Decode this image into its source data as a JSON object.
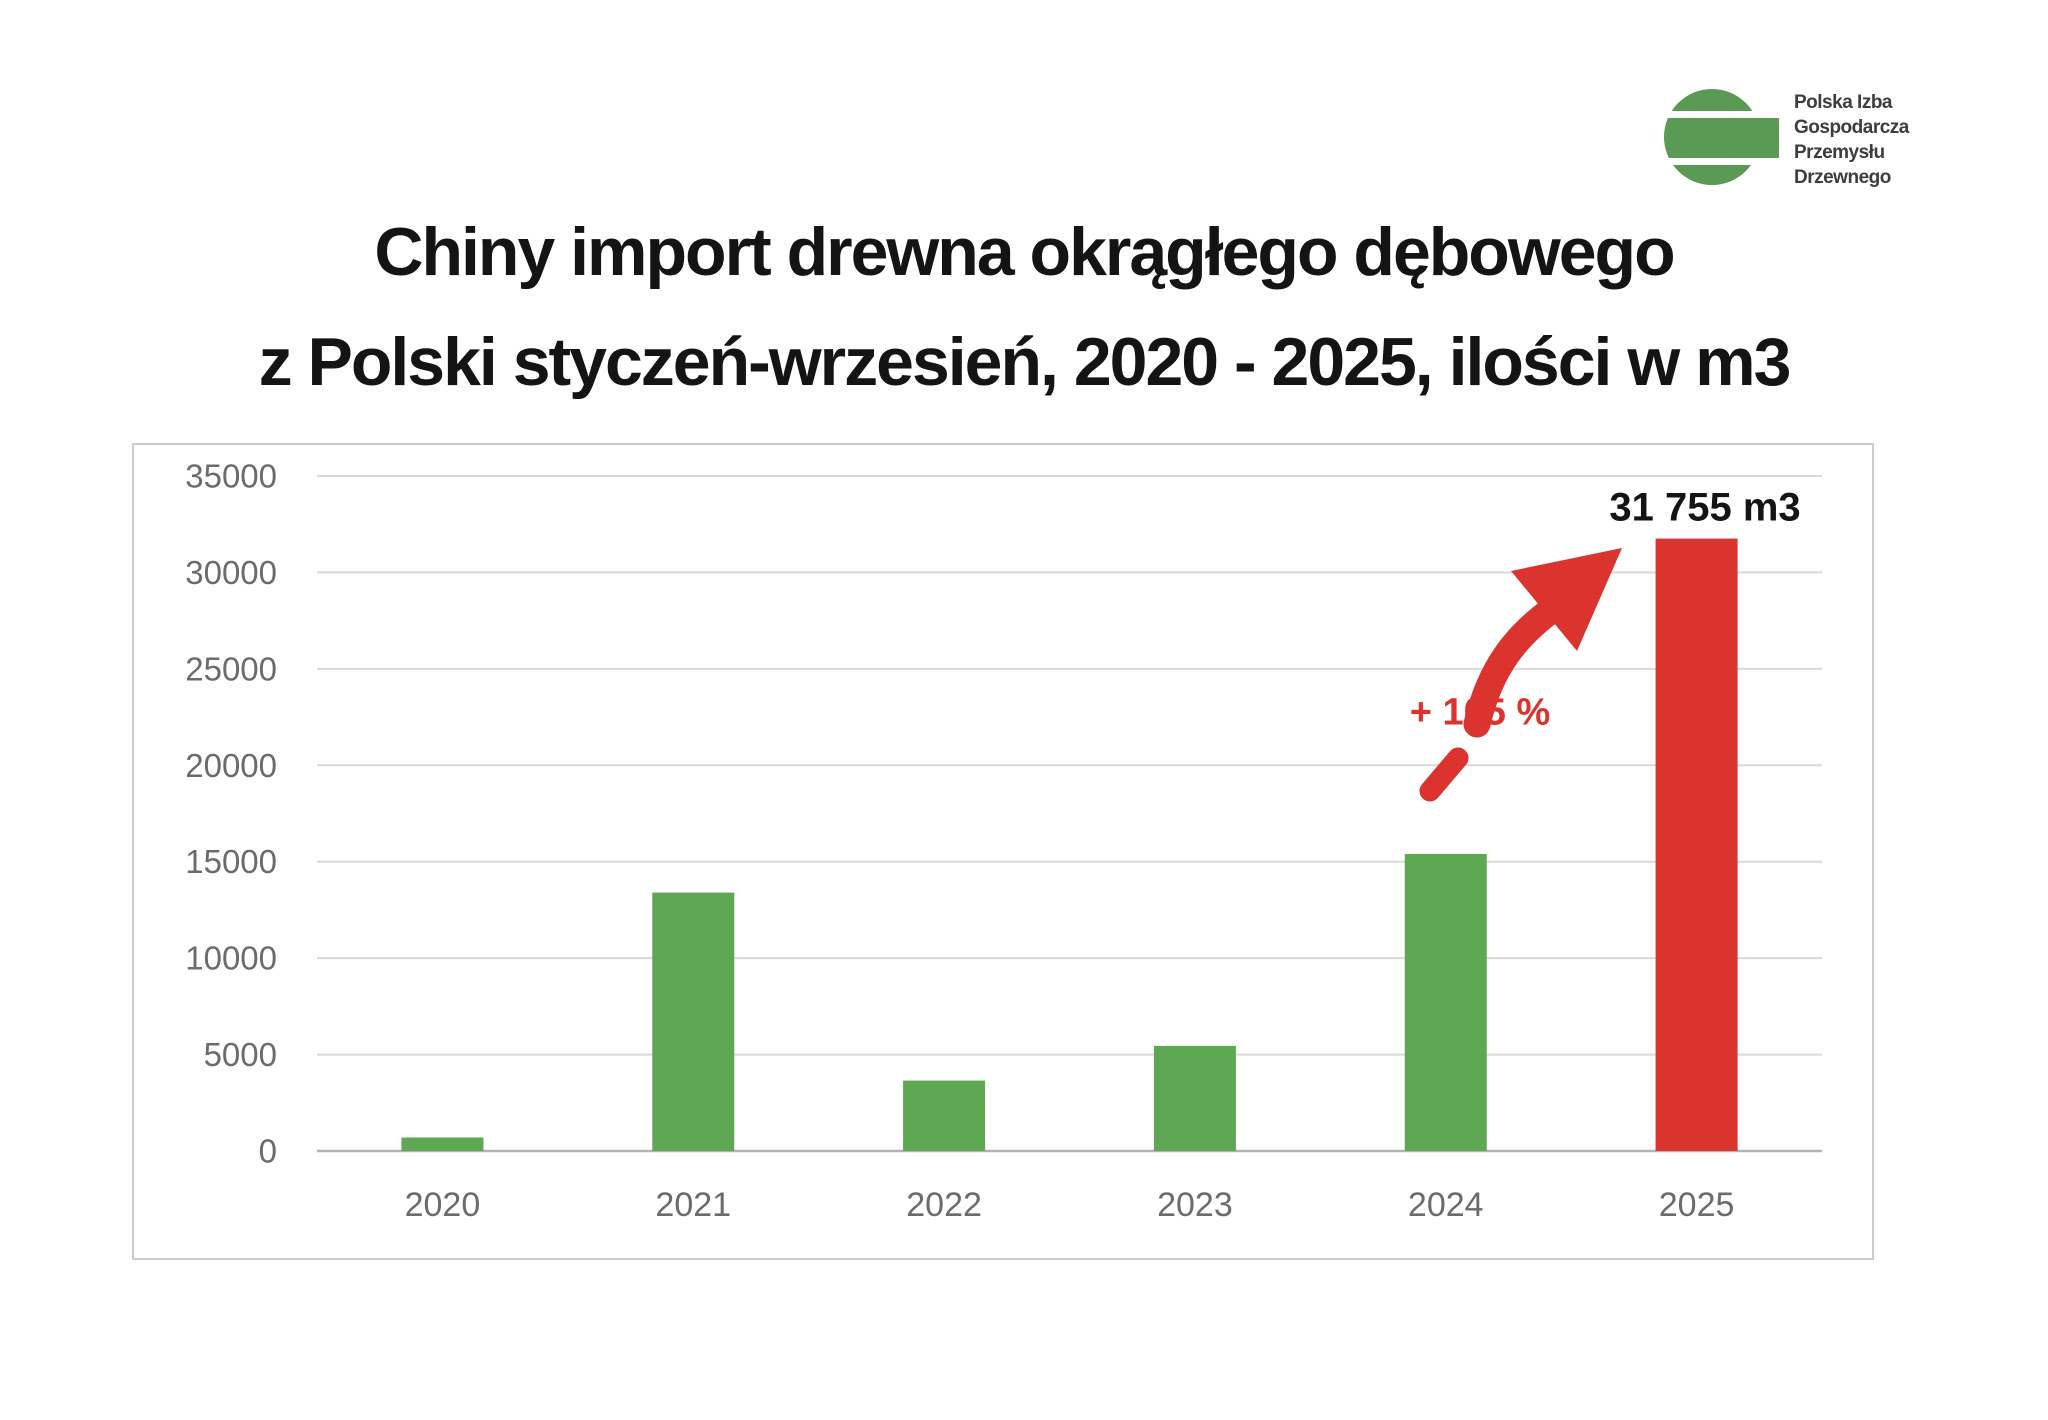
{
  "logo": {
    "lines": [
      "Polska Izba",
      "Gospodarcza",
      "Przemysłu",
      "Drzewnego"
    ],
    "mark_color": "#5a9a54",
    "mark_icon": "wood-log-circle"
  },
  "title": {
    "line1": "Chiny import drewna okrągłego dębowego",
    "line2": "z Polski styczeń-wrzesień, 2020 - 2025, ilości w m3"
  },
  "annotations": {
    "pct_label": "+ 105 %",
    "value_label": "31 755 m3"
  },
  "colors": {
    "bar_green": "#5fa853",
    "bar_red": "#db332e",
    "annotation_red": "#db332e",
    "gridline": "#d9d9d9",
    "axis_line": "#b3b3b3",
    "tick_text": "#6b6b6b",
    "frame_border": "#cbcbcb",
    "title_text": "#141414"
  },
  "chart_data": {
    "type": "bar",
    "title": "Chiny import drewna okrągłego dębowego z Polski styczeń-wrzesień, 2020 - 2025, ilości w m3",
    "categories": [
      "2020",
      "2021",
      "2022",
      "2023",
      "2024",
      "2025"
    ],
    "values": [
      700,
      13400,
      3650,
      5450,
      15400,
      31755
    ],
    "bar_colors": [
      "#5fa853",
      "#5fa853",
      "#5fa853",
      "#5fa853",
      "#5fa853",
      "#db332e"
    ],
    "data_labels": [
      "",
      "",
      "",
      "",
      "",
      "31 755 m3"
    ],
    "annotation": "+ 105 %",
    "xlabel": "",
    "ylabel": "",
    "ylim": [
      0,
      35000
    ],
    "ytick_step": 5000,
    "yticks": [
      0,
      5000,
      10000,
      15000,
      20000,
      25000,
      30000,
      35000
    ],
    "grid": "horizontal",
    "legend": "none"
  }
}
